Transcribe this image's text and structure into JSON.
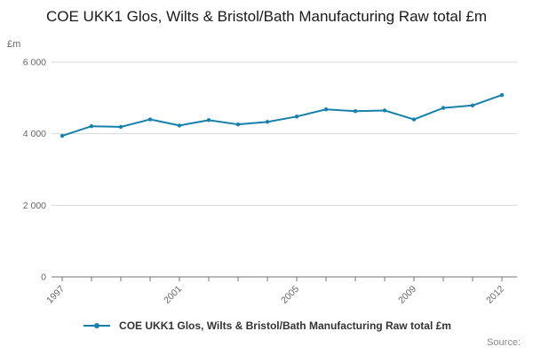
{
  "chart_data": {
    "type": "line",
    "title": "COE UKK1 Glos, Wilts & Bristol/Bath Manufacturing Raw total £m",
    "ylabel": "£m",
    "xlabel": "",
    "x": [
      1997,
      1998,
      1999,
      2000,
      2001,
      2002,
      2003,
      2004,
      2005,
      2006,
      2007,
      2008,
      2009,
      2010,
      2011,
      2012
    ],
    "values": [
      3940,
      4210,
      4190,
      4400,
      4230,
      4380,
      4260,
      4330,
      4480,
      4680,
      4630,
      4650,
      4400,
      4720,
      4790,
      5080
    ],
    "ylim": [
      0,
      6000
    ],
    "yticks": [
      0,
      2000,
      4000,
      6000
    ],
    "ytick_labels": [
      "0",
      "2 000",
      "4 000",
      "6 000"
    ],
    "xtick_labels": [
      "1997",
      "2001",
      "2005",
      "2009",
      "2012"
    ],
    "grid": "horizontal",
    "legend_position": "bottom",
    "series_name": "COE UKK1 Glos, Wilts & Bristol/Bath Manufacturing Raw total £m"
  },
  "legend": {
    "label": "COE UKK1 Glos, Wilts & Bristol/Bath Manufacturing Raw total £m"
  },
  "source": {
    "label": "Source:"
  },
  "colors": {
    "line": "#1780ad",
    "grid": "#d9d9d9",
    "axis": "#737373",
    "tick_text": "#666666"
  }
}
